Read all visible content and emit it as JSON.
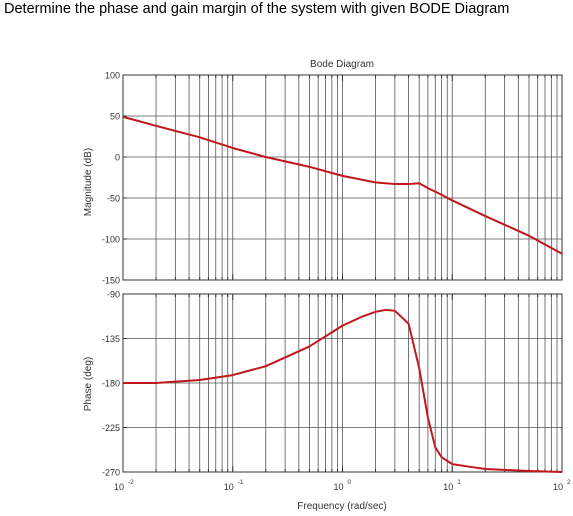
{
  "question": "Determine the phase and gain margin of the system with given BODE Diagram",
  "colors": {
    "curve": "#c0171c",
    "grid": "#555555",
    "axis": "#333333",
    "text": "#333333"
  },
  "chart_data": {
    "type": "line",
    "title": "Bode Diagram",
    "xlabel": "Frequency (rad/sec)",
    "x_scale": "log",
    "xlim": [
      0.01,
      100
    ],
    "x_ticks": [
      {
        "base": "10",
        "exp": "-2"
      },
      {
        "base": "10",
        "exp": "-1"
      },
      {
        "base": "10",
        "exp": "0"
      },
      {
        "base": "10",
        "exp": "1"
      },
      {
        "base": "10",
        "exp": "2"
      }
    ],
    "grid": true,
    "panels": [
      {
        "name": "magnitude",
        "ylabel": "Magnitude (dB)",
        "ylim": [
          -150,
          100
        ],
        "y_ticks": [
          "100",
          "50",
          "0",
          "-50",
          "-100",
          "-150"
        ],
        "x": [
          0.01,
          0.02,
          0.05,
          0.1,
          0.2,
          0.5,
          1,
          2,
          3,
          4,
          5,
          6,
          8,
          10,
          20,
          50,
          100
        ],
        "y": [
          49,
          38,
          24,
          11,
          0,
          -12,
          -23,
          -31,
          -33,
          -33,
          -32,
          -38,
          -46,
          -53,
          -72,
          -96,
          -118
        ]
      },
      {
        "name": "phase",
        "ylabel": "Phase (deg)",
        "ylim": [
          -270,
          -90
        ],
        "y_ticks": [
          "-90",
          "-135",
          "-180",
          "-225",
          "-270"
        ],
        "x": [
          0.01,
          0.02,
          0.05,
          0.1,
          0.2,
          0.5,
          1,
          1.5,
          2,
          2.5,
          3,
          4,
          5,
          6,
          7,
          8,
          10,
          15,
          20,
          50,
          100
        ],
        "y": [
          -180,
          -180,
          -177,
          -172,
          -163,
          -143,
          -122,
          -113,
          -108,
          -106,
          -107,
          -120,
          -165,
          -215,
          -245,
          -255,
          -262,
          -265,
          -267,
          -269,
          -270
        ]
      }
    ]
  }
}
